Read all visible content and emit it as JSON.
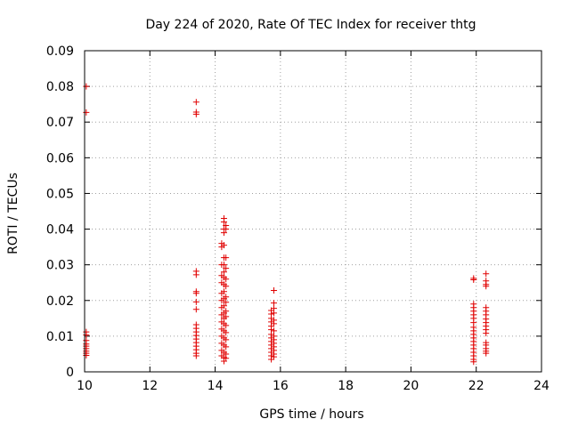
{
  "chart_data": {
    "type": "scatter",
    "title": "Day 224 of 2020, Rate Of TEC Index for receiver thtg",
    "xlabel": "GPS time / hours",
    "ylabel": "ROTI / TECUs",
    "xlim": [
      10,
      24
    ],
    "ylim": [
      0,
      0.09
    ],
    "xticks": [
      "10",
      "12",
      "14",
      "16",
      "18",
      "20",
      "22",
      "24"
    ],
    "yticks": [
      "0",
      "0.01",
      "0.02",
      "0.03",
      "0.04",
      "0.05",
      "0.06",
      "0.07",
      "0.08",
      "0.09"
    ],
    "grid": true,
    "marker": "+",
    "color": "#e00000",
    "points": [
      [
        10.05,
        0.08
      ],
      [
        10.05,
        0.0727
      ],
      [
        10.05,
        0.0112
      ],
      [
        10.05,
        0.0103
      ],
      [
        10.05,
        0.0088
      ],
      [
        10.05,
        0.0078
      ],
      [
        10.05,
        0.0072
      ],
      [
        10.05,
        0.0065
      ],
      [
        10.05,
        0.0058
      ],
      [
        10.05,
        0.0052
      ],
      [
        10.05,
        0.0046
      ],
      [
        13.42,
        0.0756
      ],
      [
        13.42,
        0.0728
      ],
      [
        13.42,
        0.0722
      ],
      [
        13.42,
        0.0282
      ],
      [
        13.42,
        0.0272
      ],
      [
        13.42,
        0.0225
      ],
      [
        13.42,
        0.022
      ],
      [
        13.42,
        0.0196
      ],
      [
        13.42,
        0.0175
      ],
      [
        13.42,
        0.0132
      ],
      [
        13.42,
        0.0122
      ],
      [
        13.42,
        0.0112
      ],
      [
        13.42,
        0.0102
      ],
      [
        13.42,
        0.0092
      ],
      [
        13.42,
        0.0082
      ],
      [
        13.42,
        0.0072
      ],
      [
        13.42,
        0.0062
      ],
      [
        13.42,
        0.0052
      ],
      [
        13.42,
        0.0045
      ],
      [
        14.2,
        0.036
      ],
      [
        14.2,
        0.035
      ],
      [
        14.2,
        0.03
      ],
      [
        14.2,
        0.027
      ],
      [
        14.2,
        0.025
      ],
      [
        14.2,
        0.022
      ],
      [
        14.2,
        0.02
      ],
      [
        14.2,
        0.018
      ],
      [
        14.2,
        0.016
      ],
      [
        14.2,
        0.014
      ],
      [
        14.2,
        0.012
      ],
      [
        14.2,
        0.01
      ],
      [
        14.2,
        0.008
      ],
      [
        14.2,
        0.006
      ],
      [
        14.2,
        0.0045
      ],
      [
        14.27,
        0.043
      ],
      [
        14.27,
        0.042
      ],
      [
        14.27,
        0.04
      ],
      [
        14.27,
        0.039
      ],
      [
        14.27,
        0.0355
      ],
      [
        14.27,
        0.032
      ],
      [
        14.27,
        0.03
      ],
      [
        14.27,
        0.028
      ],
      [
        14.27,
        0.0265
      ],
      [
        14.27,
        0.0245
      ],
      [
        14.27,
        0.0225
      ],
      [
        14.27,
        0.0205
      ],
      [
        14.27,
        0.0185
      ],
      [
        14.27,
        0.0165
      ],
      [
        14.27,
        0.015
      ],
      [
        14.27,
        0.0135
      ],
      [
        14.27,
        0.0115
      ],
      [
        14.27,
        0.0095
      ],
      [
        14.27,
        0.0075
      ],
      [
        14.27,
        0.0055
      ],
      [
        14.27,
        0.004
      ],
      [
        14.27,
        0.003
      ],
      [
        14.33,
        0.041
      ],
      [
        14.33,
        0.04
      ],
      [
        14.33,
        0.032
      ],
      [
        14.33,
        0.029
      ],
      [
        14.33,
        0.026
      ],
      [
        14.33,
        0.024
      ],
      [
        14.33,
        0.021
      ],
      [
        14.33,
        0.0195
      ],
      [
        14.33,
        0.017
      ],
      [
        14.33,
        0.0155
      ],
      [
        14.33,
        0.013
      ],
      [
        14.33,
        0.011
      ],
      [
        14.33,
        0.009
      ],
      [
        14.33,
        0.007
      ],
      [
        14.33,
        0.005
      ],
      [
        14.33,
        0.0038
      ],
      [
        15.72,
        0.0172
      ],
      [
        15.72,
        0.0162
      ],
      [
        15.72,
        0.015
      ],
      [
        15.72,
        0.014
      ],
      [
        15.72,
        0.0128
      ],
      [
        15.72,
        0.0118
      ],
      [
        15.72,
        0.0105
      ],
      [
        15.72,
        0.0095
      ],
      [
        15.72,
        0.0085
      ],
      [
        15.72,
        0.0075
      ],
      [
        15.72,
        0.0065
      ],
      [
        15.72,
        0.0055
      ],
      [
        15.72,
        0.0045
      ],
      [
        15.72,
        0.0035
      ],
      [
        15.8,
        0.0228
      ],
      [
        15.8,
        0.0193
      ],
      [
        15.8,
        0.0178
      ],
      [
        15.8,
        0.0165
      ],
      [
        15.8,
        0.0145
      ],
      [
        15.8,
        0.0135
      ],
      [
        15.8,
        0.0115
      ],
      [
        15.8,
        0.01
      ],
      [
        15.8,
        0.009
      ],
      [
        15.8,
        0.008
      ],
      [
        15.8,
        0.007
      ],
      [
        15.8,
        0.006
      ],
      [
        15.8,
        0.005
      ],
      [
        15.8,
        0.0042
      ],
      [
        21.92,
        0.0262
      ],
      [
        21.92,
        0.0258
      ],
      [
        21.92,
        0.019
      ],
      [
        21.92,
        0.018
      ],
      [
        21.92,
        0.017
      ],
      [
        21.92,
        0.016
      ],
      [
        21.92,
        0.015
      ],
      [
        21.92,
        0.0138
      ],
      [
        21.92,
        0.0125
      ],
      [
        21.92,
        0.0115
      ],
      [
        21.92,
        0.0105
      ],
      [
        21.92,
        0.0095
      ],
      [
        21.92,
        0.0085
      ],
      [
        21.92,
        0.0075
      ],
      [
        21.92,
        0.0065
      ],
      [
        21.92,
        0.0055
      ],
      [
        21.92,
        0.0045
      ],
      [
        21.92,
        0.0035
      ],
      [
        21.92,
        0.0028
      ],
      [
        22.3,
        0.0275
      ],
      [
        22.3,
        0.0255
      ],
      [
        22.3,
        0.0245
      ],
      [
        22.3,
        0.024
      ],
      [
        22.3,
        0.018
      ],
      [
        22.3,
        0.017
      ],
      [
        22.3,
        0.016
      ],
      [
        22.3,
        0.0148
      ],
      [
        22.3,
        0.0138
      ],
      [
        22.3,
        0.0128
      ],
      [
        22.3,
        0.0118
      ],
      [
        22.3,
        0.0108
      ],
      [
        22.3,
        0.0082
      ],
      [
        22.3,
        0.0075
      ],
      [
        22.3,
        0.0065
      ],
      [
        22.3,
        0.0058
      ],
      [
        22.3,
        0.0052
      ]
    ]
  }
}
